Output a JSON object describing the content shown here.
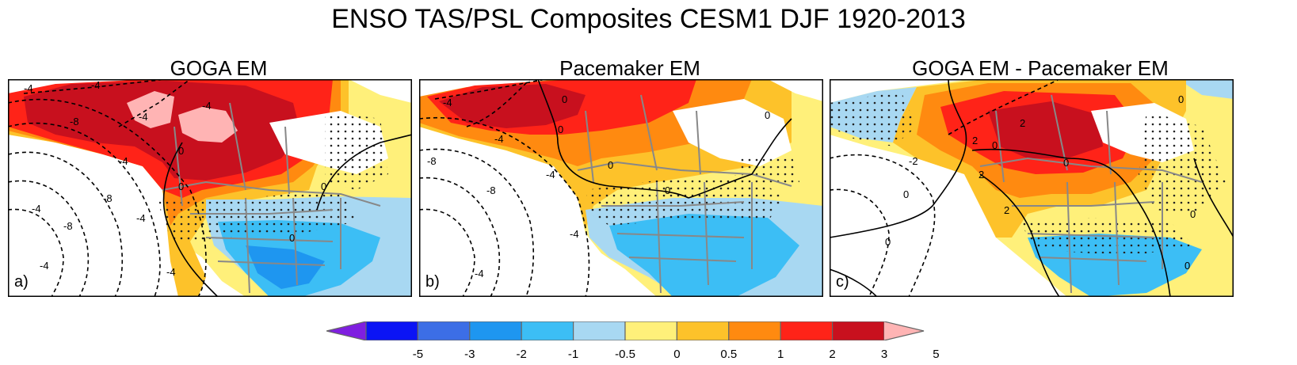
{
  "title": "ENSO TAS/PSL Composites CESM1 DJF 1920-2013",
  "panels": [
    {
      "id": "a",
      "title": "GOGA EM",
      "label": "a)",
      "contour_labels": [
        "-4",
        "-4",
        "-4",
        "-4",
        "-8",
        "-4",
        "-8",
        "-4",
        "-8",
        "-4",
        "-4",
        "-4",
        "0",
        "0",
        "0",
        "0"
      ]
    },
    {
      "id": "b",
      "title": "Pacemaker EM",
      "label": "b)",
      "contour_labels": [
        "-4",
        "0",
        "-4",
        "-8",
        "-4",
        "-8",
        "-4",
        "-4",
        "0",
        "0",
        "0",
        "0"
      ]
    },
    {
      "id": "c",
      "title": "GOGA EM - Pacemaker EM",
      "label": "c)",
      "contour_labels": [
        "0",
        "2",
        "2",
        "0",
        "-2",
        "0",
        "2",
        "2",
        "0",
        "0",
        "0",
        "0"
      ]
    }
  ],
  "colorbar": {
    "colors": [
      "#7f1fe0",
      "#0b14f5",
      "#3c6ee6",
      "#1e96f0",
      "#3cbef5",
      "#a8d8f2",
      "#fff07a",
      "#fdc22a",
      "#ff8a10",
      "#ff2318",
      "#c8101e",
      "#ffb4b4"
    ],
    "labels": [
      "-5",
      "-3",
      "-2",
      "-1",
      "-0.5",
      "0",
      "0.5",
      "1",
      "2",
      "3",
      "5"
    ]
  }
}
